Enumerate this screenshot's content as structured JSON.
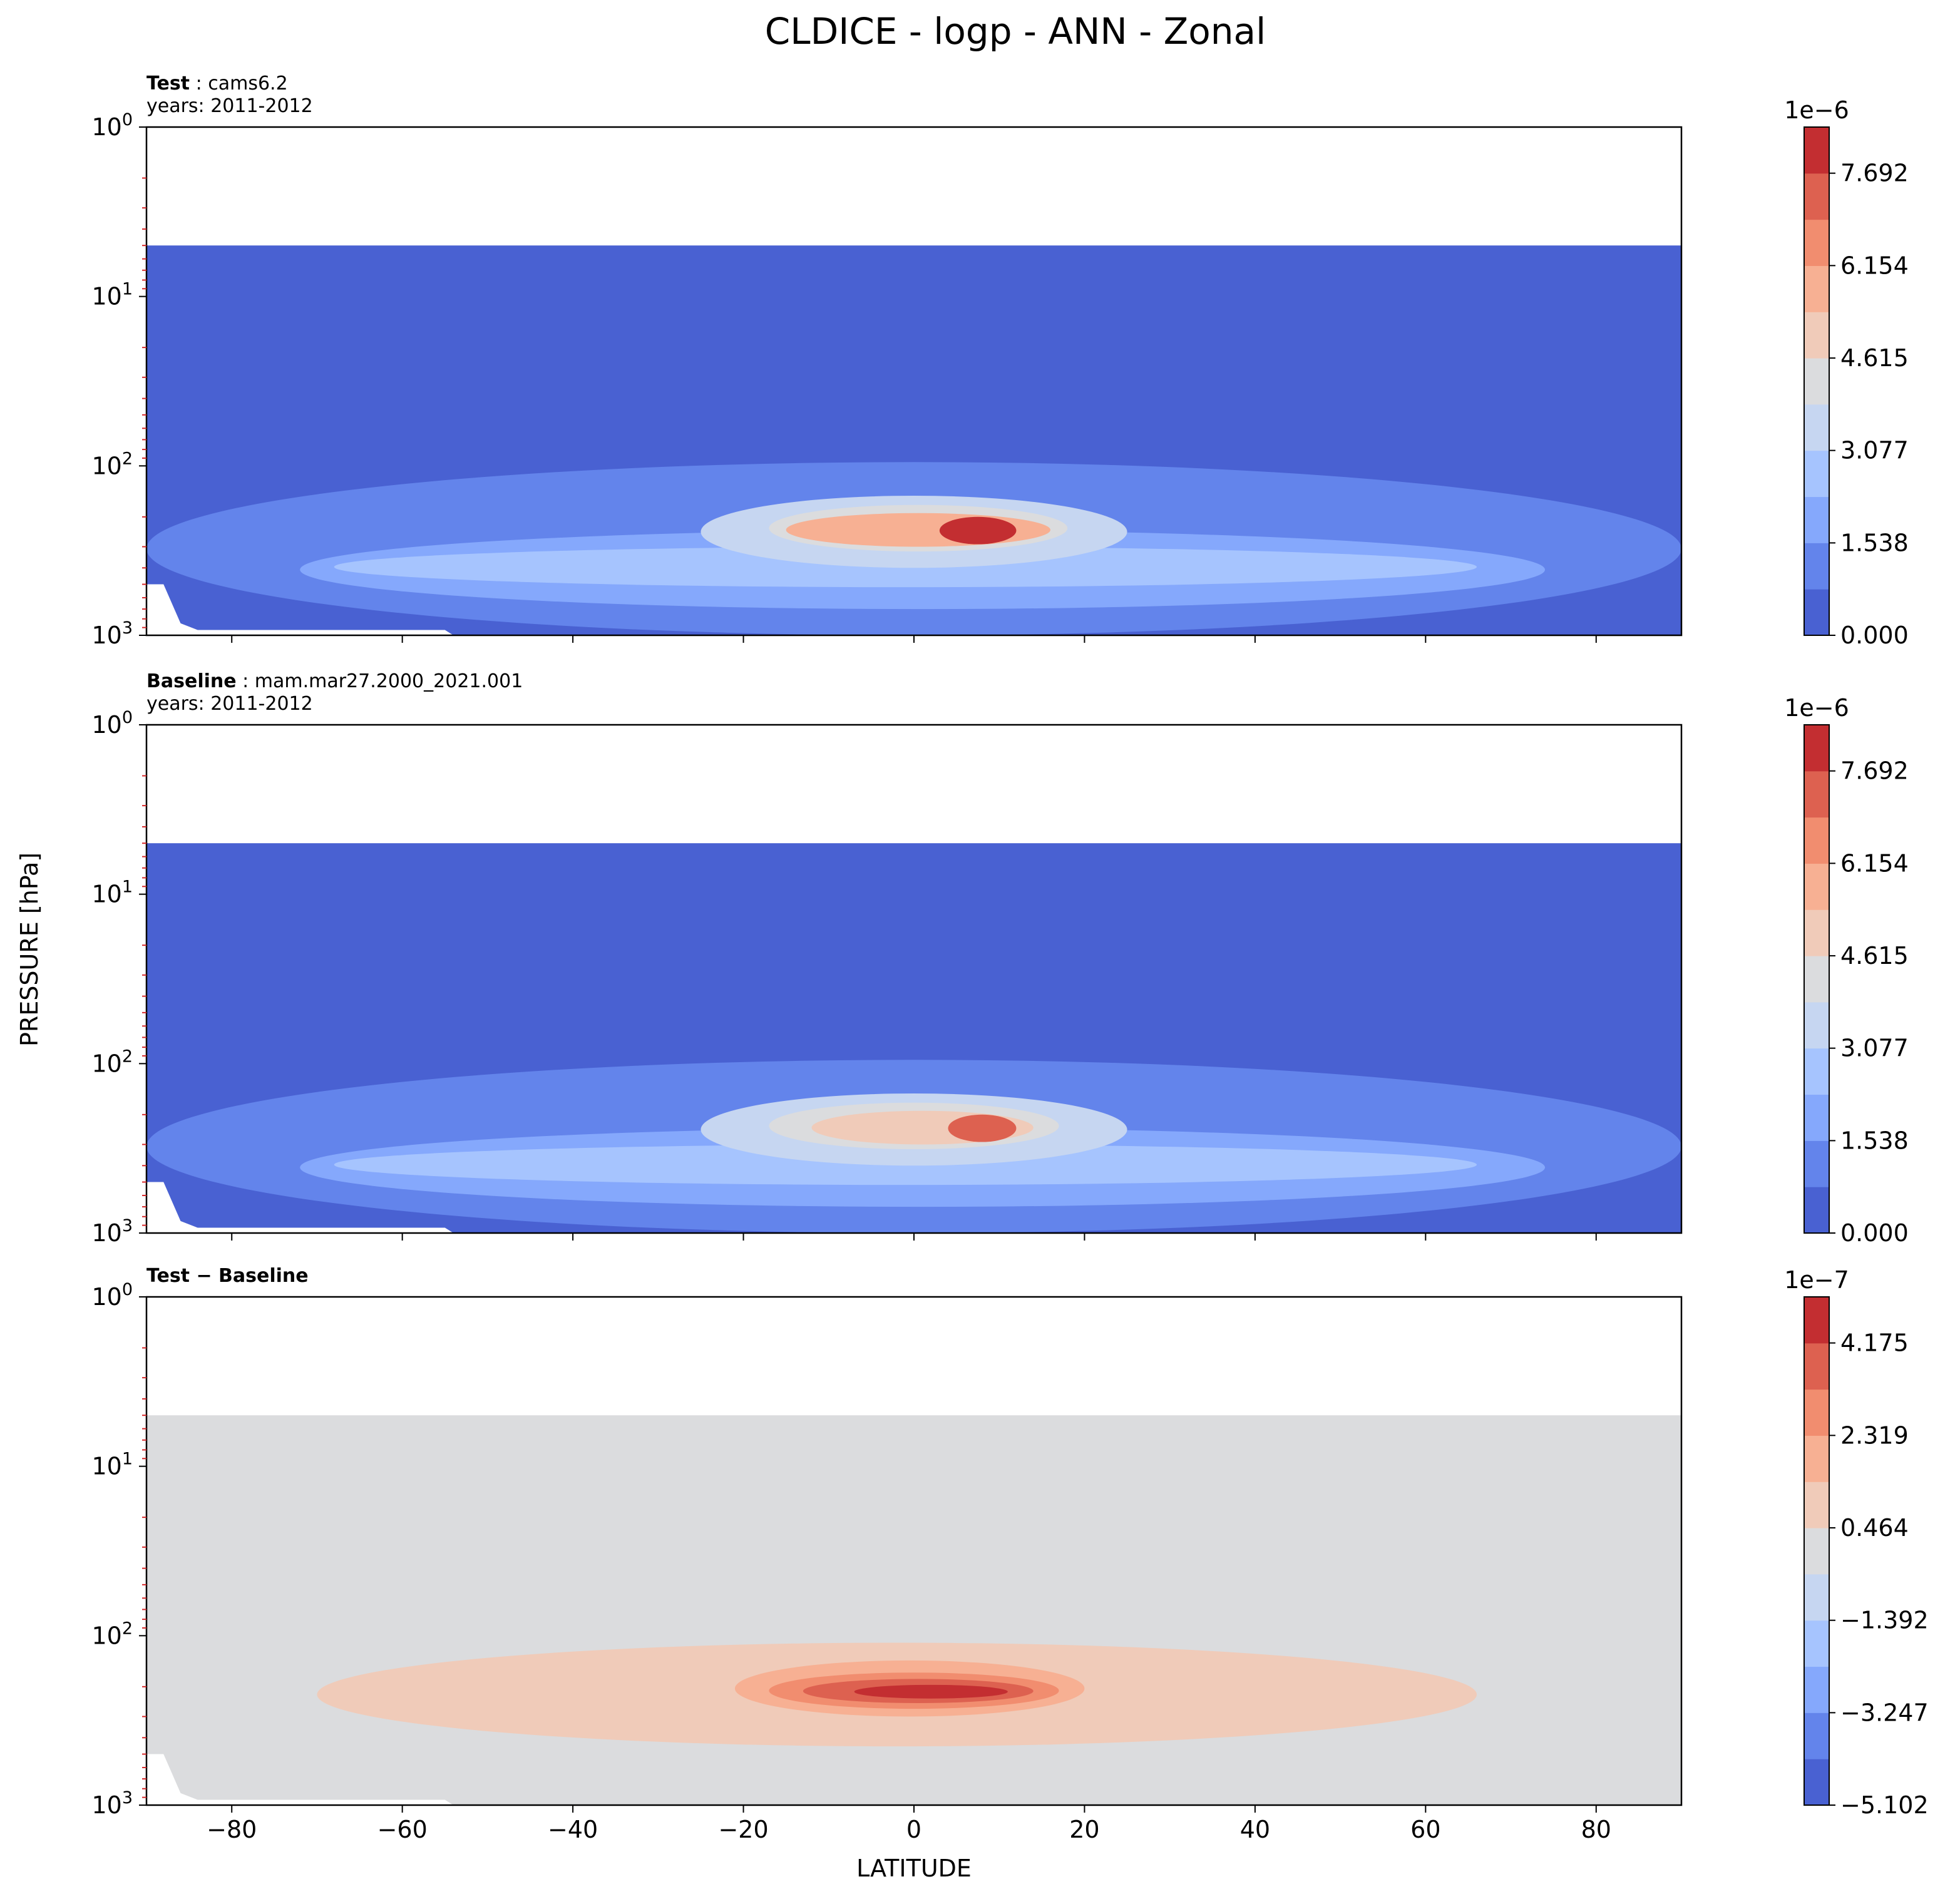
{
  "figure": {
    "title": "CLDICE - logp - ANN - Zonal",
    "xlabel": "LATITUDE",
    "ylabel": "PRESSURE [hPa]"
  },
  "chart_data": [
    {
      "type": "heatmap",
      "panel": "test",
      "label_bold": "Test",
      "label_text": "cams6.2",
      "years": "years: 2011-2012",
      "xlim": [
        -90,
        90
      ],
      "ylim": [
        1000,
        1
      ],
      "yscale": "log",
      "x_ticks": [
        -80,
        -60,
        -40,
        -20,
        0,
        20,
        40,
        60,
        80
      ],
      "x_ticklabels": [
        "−80",
        "−60",
        "−40",
        "−20",
        "0",
        "20",
        "40",
        "60",
        "80"
      ],
      "show_x_ticklabels": false,
      "y_ticks": [
        1,
        10,
        100,
        1000
      ],
      "y_ticklabels": [
        [
          "10",
          "0"
        ],
        [
          "10",
          "1"
        ],
        [
          "10",
          "2"
        ],
        [
          "10",
          "3"
        ]
      ],
      "data_top_hpa": 5,
      "colorbar": {
        "exponent": "1e−6",
        "ticks": [
          0.0,
          1.538,
          3.077,
          4.615,
          6.154,
          7.692
        ],
        "ticklabels": [
          "0.000",
          "1.538",
          "3.077",
          "4.615",
          "6.154",
          "7.692"
        ],
        "max": 8.46,
        "colors": [
          "#4961d2",
          "#6384eb",
          "#85a8fc",
          "#a6c4fe",
          "#c6d6f1",
          "#dbdcde",
          "#f0cbb9",
          "#f7b093",
          "#f18d6f",
          "#dd6150",
          "#c32e31"
        ]
      },
      "features": [
        {
          "level": 1,
          "lat": [
            -90,
            90
          ],
          "p": [
            95,
            1000
          ]
        },
        {
          "level": 2,
          "lat": [
            -72,
            74
          ],
          "p": [
            240,
            700
          ]
        },
        {
          "level": 3,
          "lat": [
            -68,
            66
          ],
          "p": [
            300,
            520
          ]
        },
        {
          "level": 4,
          "lat": [
            -25,
            25
          ],
          "p": [
            150,
            400
          ]
        },
        {
          "level": 5,
          "lat": [
            -17,
            18
          ],
          "p": [
            170,
            320
          ]
        },
        {
          "level": 7,
          "lat": [
            -15,
            16
          ],
          "p": [
            190,
            300
          ]
        },
        {
          "level": 10,
          "lat": [
            3,
            12
          ],
          "p": [
            200,
            290
          ]
        }
      ]
    },
    {
      "type": "heatmap",
      "panel": "baseline",
      "label_bold": "Baseline",
      "label_text": "mam.mar27.2000_2021.001",
      "years": "years: 2011-2012",
      "xlim": [
        -90,
        90
      ],
      "ylim": [
        1000,
        1
      ],
      "yscale": "log",
      "x_ticks": [
        -80,
        -60,
        -40,
        -20,
        0,
        20,
        40,
        60,
        80
      ],
      "x_ticklabels": [
        "−80",
        "−60",
        "−40",
        "−20",
        "0",
        "20",
        "40",
        "60",
        "80"
      ],
      "show_x_ticklabels": false,
      "y_ticks": [
        1,
        10,
        100,
        1000
      ],
      "y_ticklabels": [
        [
          "10",
          "0"
        ],
        [
          "10",
          "1"
        ],
        [
          "10",
          "2"
        ],
        [
          "10",
          "3"
        ]
      ],
      "data_top_hpa": 5,
      "colorbar": {
        "exponent": "1e−6",
        "ticks": [
          0.0,
          1.538,
          3.077,
          4.615,
          6.154,
          7.692
        ],
        "ticklabels": [
          "0.000",
          "1.538",
          "3.077",
          "4.615",
          "6.154",
          "7.692"
        ],
        "max": 8.46,
        "colors": [
          "#4961d2",
          "#6384eb",
          "#85a8fc",
          "#a6c4fe",
          "#c6d6f1",
          "#dbdcde",
          "#f0cbb9",
          "#f7b093",
          "#f18d6f",
          "#dd6150",
          "#c32e31"
        ]
      },
      "features": [
        {
          "level": 1,
          "lat": [
            -90,
            90
          ],
          "p": [
            95,
            1000
          ]
        },
        {
          "level": 2,
          "lat": [
            -72,
            74
          ],
          "p": [
            240,
            700
          ]
        },
        {
          "level": 3,
          "lat": [
            -68,
            66
          ],
          "p": [
            300,
            520
          ]
        },
        {
          "level": 4,
          "lat": [
            -25,
            25
          ],
          "p": [
            150,
            400
          ]
        },
        {
          "level": 5,
          "lat": [
            -17,
            17
          ],
          "p": [
            170,
            320
          ]
        },
        {
          "level": 6,
          "lat": [
            -12,
            14
          ],
          "p": [
            190,
            300
          ]
        },
        {
          "level": 9,
          "lat": [
            4,
            12
          ],
          "p": [
            200,
            290
          ]
        }
      ]
    },
    {
      "type": "heatmap",
      "panel": "diff",
      "label_bold": "Test − Baseline",
      "label_text": "",
      "years": "",
      "xlim": [
        -90,
        90
      ],
      "ylim": [
        1000,
        1
      ],
      "yscale": "log",
      "x_ticks": [
        -80,
        -60,
        -40,
        -20,
        0,
        20,
        40,
        60,
        80
      ],
      "x_ticklabels": [
        "−80",
        "−60",
        "−40",
        "−20",
        "0",
        "20",
        "40",
        "60",
        "80"
      ],
      "show_x_ticklabels": true,
      "y_ticks": [
        1,
        10,
        100,
        1000
      ],
      "y_ticklabels": [
        [
          "10",
          "0"
        ],
        [
          "10",
          "1"
        ],
        [
          "10",
          "2"
        ],
        [
          "10",
          "3"
        ]
      ],
      "data_top_hpa": 5,
      "colorbar": {
        "exponent": "1e−7",
        "ticks": [
          -5.102,
          -3.247,
          -1.392,
          0.464,
          2.319,
          4.175
        ],
        "ticklabels": [
          "−5.102",
          "−3.247",
          "−1.392",
          "0.464",
          "2.319",
          "4.175"
        ],
        "min": -5.102,
        "max": 5.1,
        "colors": [
          "#4961d2",
          "#6384eb",
          "#85a8fc",
          "#a6c4fe",
          "#c6d6f1",
          "#dbdcde",
          "#f0cbb9",
          "#f7b093",
          "#f18d6f",
          "#dd6150",
          "#c32e31"
        ]
      },
      "background_level": 5,
      "features": [
        {
          "level": 6,
          "lat": [
            -70,
            66
          ],
          "p": [
            110,
            450
          ]
        },
        {
          "level": 7,
          "lat": [
            -21,
            20
          ],
          "p": [
            140,
            300
          ]
        },
        {
          "level": 8,
          "lat": [
            -17,
            17
          ],
          "p": [
            165,
            270
          ]
        },
        {
          "level": 9,
          "lat": [
            -13,
            14
          ],
          "p": [
            180,
            250
          ]
        },
        {
          "level": 10,
          "lat": [
            -7,
            11
          ],
          "p": [
            195,
            235
          ]
        }
      ]
    }
  ]
}
